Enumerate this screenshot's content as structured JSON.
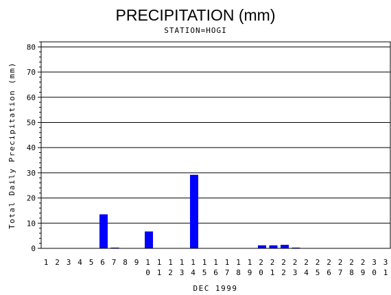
{
  "chart_data": {
    "type": "bar",
    "title": "PRECIPITATION (mm)",
    "subtitle": "STATION=HOGI",
    "xlabel": "DEC 1999",
    "ylabel": "Total Daily Precipitation (mm)",
    "ylim": [
      0,
      82
    ],
    "yticks": [
      0,
      10,
      20,
      30,
      40,
      50,
      60,
      70,
      80
    ],
    "grid": true,
    "bar_color": "#0000ff",
    "categories": [
      "1",
      "2",
      "3",
      "4",
      "5",
      "6",
      "7",
      "8",
      "9",
      "10",
      "11",
      "12",
      "13",
      "14",
      "15",
      "16",
      "17",
      "18",
      "19",
      "20",
      "21",
      "22",
      "23",
      "24",
      "25",
      "26",
      "27",
      "28",
      "29",
      "30",
      "31"
    ],
    "values": [
      0,
      0,
      0,
      0,
      0,
      13.5,
      0.3,
      0,
      0,
      6.7,
      0,
      0,
      0,
      29.2,
      0,
      0,
      0,
      0,
      0,
      1.2,
      1.2,
      1.4,
      0.3,
      0,
      0,
      0,
      0,
      0,
      0,
      0,
      0
    ]
  }
}
